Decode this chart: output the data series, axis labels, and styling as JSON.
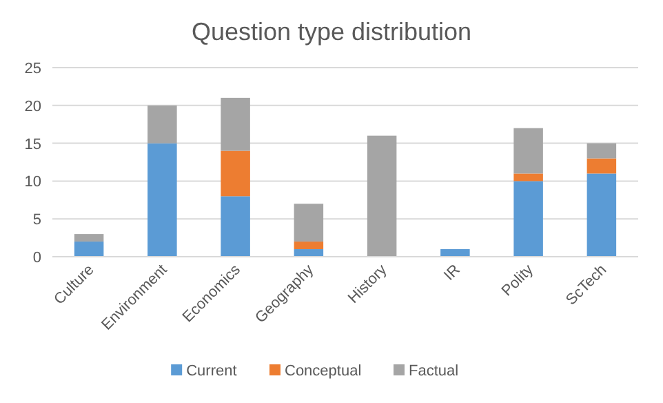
{
  "chart_data": {
    "type": "bar",
    "title": "Question type distribution",
    "stacked": true,
    "categories": [
      "Culture",
      "Environment",
      "Economics",
      "Geography",
      "History",
      "IR",
      "Polity",
      "ScTech"
    ],
    "series": [
      {
        "name": "Current",
        "color": "#5b9bd5",
        "values": [
          2,
          15,
          8,
          1,
          0,
          1,
          10,
          11
        ]
      },
      {
        "name": "Conceptual",
        "color": "#ed7d31",
        "values": [
          0,
          0,
          6,
          1,
          0,
          0,
          1,
          2
        ]
      },
      {
        "name": "Factual",
        "color": "#a5a5a5",
        "values": [
          1,
          5,
          7,
          5,
          16,
          0,
          6,
          2
        ]
      }
    ],
    "ylim": [
      0,
      25
    ],
    "yticks": [
      0,
      5,
      10,
      15,
      20,
      25
    ],
    "grid": "y",
    "legend": "bottom"
  }
}
